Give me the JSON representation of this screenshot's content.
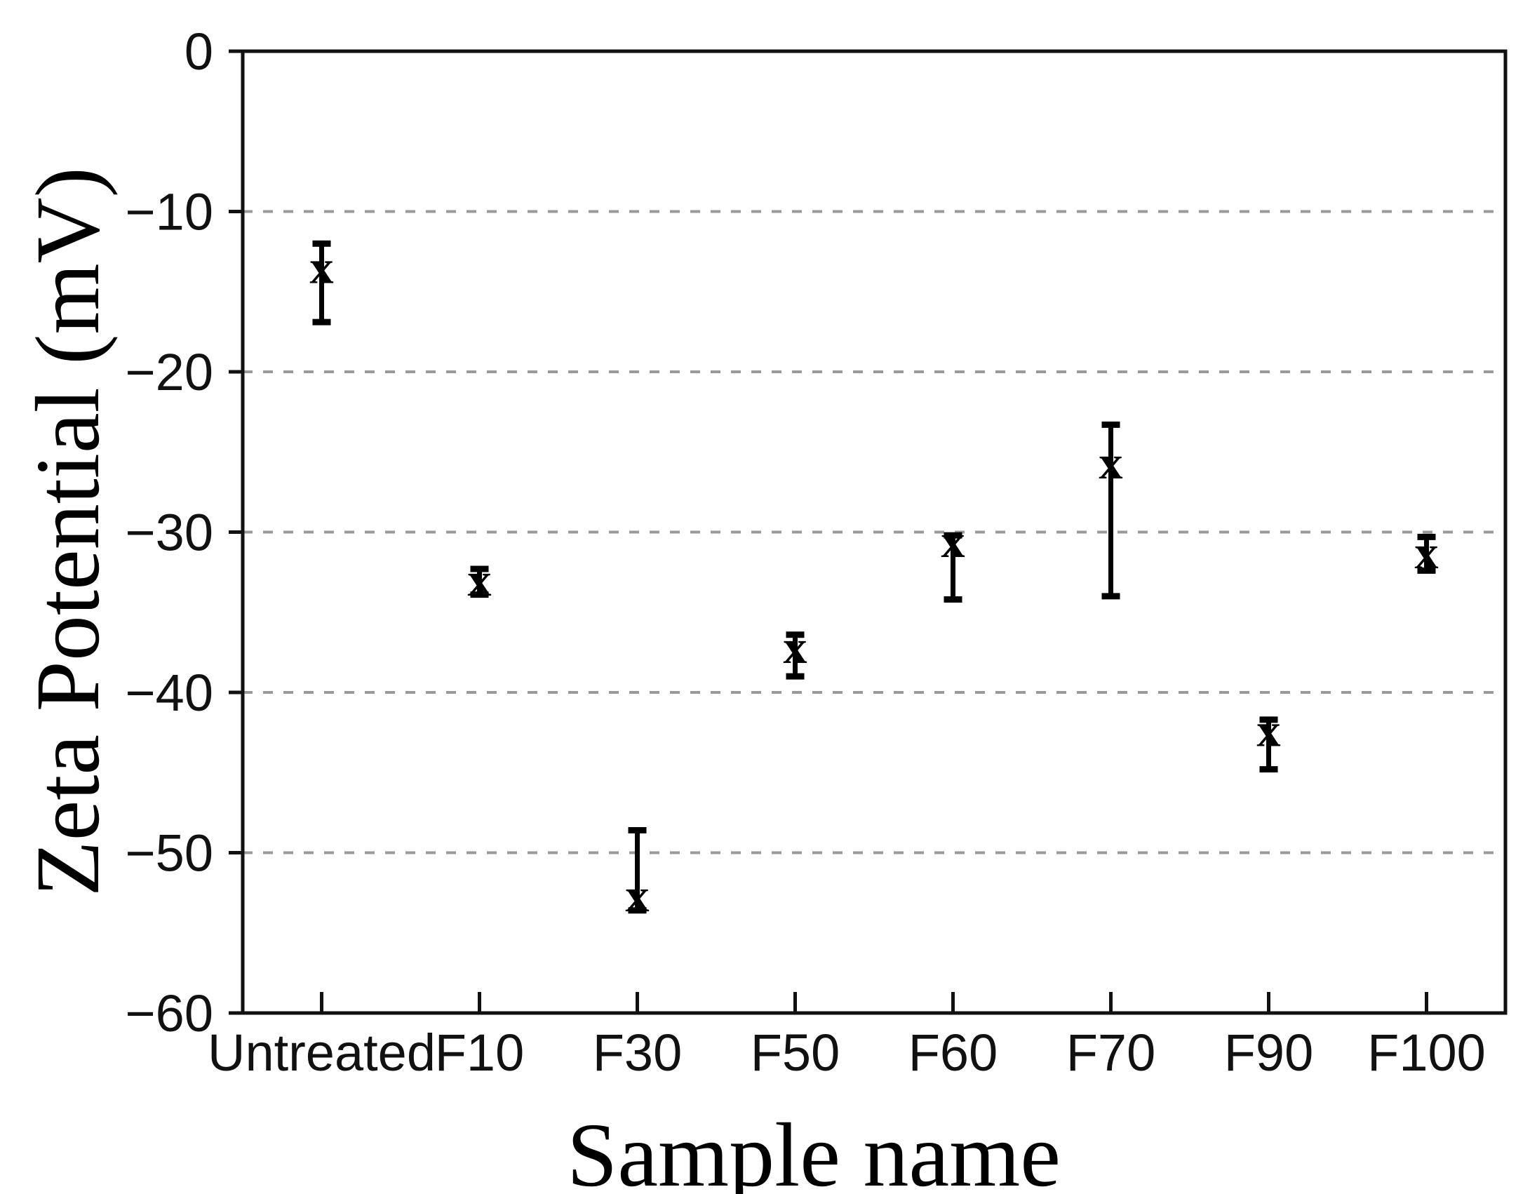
{
  "chart_data": {
    "type": "scatter",
    "title": "",
    "xlabel": "Sample name",
    "ylabel": "Zeta Potential (mV)",
    "ylim": [
      -60,
      0
    ],
    "grid": "horizontal dashed gridlines at major y ticks (-10 to -50)",
    "legend": "none",
    "marker_glyph": "x",
    "y_ticks": [
      0,
      -10,
      -20,
      -30,
      -40,
      -50,
      -60
    ],
    "y_tick_labels": [
      "0",
      "−10",
      "−20",
      "−30",
      "−40",
      "−50",
      "−60"
    ],
    "gridlines": [
      -10,
      -20,
      -30,
      -40,
      -50
    ],
    "categories": [
      "Untreated",
      "F10",
      "F30",
      "F50",
      "F60",
      "F70",
      "F90",
      "F100"
    ],
    "series": [
      {
        "name": "Zeta potential",
        "values": [
          -13.8,
          -33.3,
          -53.0,
          -37.5,
          -30.9,
          -26.0,
          -42.7,
          -31.6
        ],
        "error_bar_top": [
          -12.0,
          -32.3,
          -48.6,
          -36.4,
          -30.2,
          -23.3,
          -41.7,
          -30.3
        ],
        "error_bar_bottom": [
          -16.9,
          -33.9,
          -53.6,
          -39.0,
          -34.2,
          -34.0,
          -44.8,
          -32.4
        ]
      }
    ]
  },
  "colors": {
    "axis": "#111111",
    "grid": "#9a9a9a",
    "marker": "#000000",
    "background": "#ffffff"
  }
}
